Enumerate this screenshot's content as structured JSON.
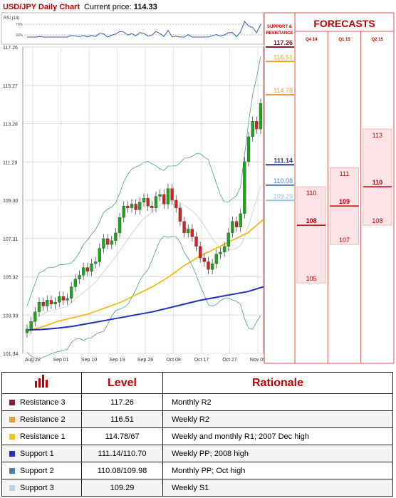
{
  "header": {
    "title": "USD/JPY Daily Chart",
    "price_label": "Current price:",
    "price_value": "114.33"
  },
  "rsi": {
    "label": "RSI (14)",
    "ticks": [
      "70%",
      "30%"
    ]
  },
  "chart_data": {
    "type": "candlestick",
    "y_ticks": [
      "117.26",
      "115.27",
      "113.28",
      "111.29",
      "109.30",
      "107.31",
      "105.32",
      "103.33",
      "101.34"
    ],
    "ylim": [
      101.34,
      117.26
    ],
    "x_ticks": [
      "Aug 22",
      "Sep 01",
      "Sep 10",
      "Sep 19",
      "Sep 29",
      "Oct 08",
      "Oct 17",
      "Oct 27",
      "Nov 05"
    ],
    "close": [
      102.6,
      103.0,
      103.5,
      104.0,
      103.8,
      104.1,
      103.9,
      104.0,
      104.3,
      104.1,
      104.2,
      104.8,
      105.2,
      105.4,
      105.8,
      105.6,
      106.0,
      106.1,
      106.8,
      107.3,
      107.0,
      107.2,
      107.6,
      108.4,
      109.0,
      108.9,
      109.1,
      108.8,
      109.2,
      109.4,
      109.0,
      108.9,
      109.5,
      109.6,
      109.1,
      109.9,
      109.3,
      108.9,
      108.2,
      107.6,
      107.8,
      107.4,
      106.9,
      106.3,
      106.1,
      105.7,
      106.0,
      106.5,
      106.6,
      106.9,
      107.6,
      108.2,
      107.9,
      108.6,
      111.3,
      112.6,
      113.4,
      113.0,
      114.33
    ],
    "sma_yellow": [
      102.5,
      102.7,
      103.0,
      103.2,
      103.4,
      103.7,
      104.0,
      104.4,
      104.8,
      105.3,
      105.9,
      106.4,
      106.8,
      107.2,
      107.6,
      108.3
    ],
    "sma_blue": [
      102.55,
      102.58,
      102.65,
      102.75,
      102.9,
      103.05,
      103.2,
      103.35,
      103.5,
      103.7,
      103.9,
      104.1,
      104.25,
      104.4,
      104.55,
      104.8
    ]
  },
  "levels_panel": {
    "title": "SUPPORT & RESISTANCE",
    "levels": [
      {
        "value": "117.26",
        "color": "#8b1a2b",
        "price": 117.26
      },
      {
        "value": "116.51",
        "color": "#e7a13c",
        "price": 116.51
      },
      {
        "value": "114.78",
        "color": "#e7a13c",
        "price": 114.78
      },
      {
        "value": "111.14",
        "color": "#1f3c9a",
        "price": 111.14
      },
      {
        "value": "110.08",
        "color": "#4a7fb5",
        "price": 110.08
      },
      {
        "value": "109.29",
        "color": "#9bc4d6",
        "price": 109.29
      }
    ]
  },
  "forecasts": {
    "title": "FORECASTS",
    "columns": [
      {
        "label": "Q4 14",
        "high": "110",
        "mid": "108",
        "low": "105"
      },
      {
        "label": "Q1 15",
        "high": "111",
        "mid": "109",
        "low": "107"
      },
      {
        "label": "Q2 15",
        "high": "113",
        "mid": "110",
        "low": "108"
      }
    ]
  },
  "table": {
    "col_level": "Level",
    "col_rationale": "Rationale",
    "rows": [
      {
        "name": "Resistance 3",
        "color": "#8b1a2b",
        "level": "117.26",
        "rationale": "Monthly R2"
      },
      {
        "name": "Resistance 2",
        "color": "#e7a13c",
        "level": "116.51",
        "rationale": "Weekly R2"
      },
      {
        "name": "Resistance 1",
        "color": "#f3c21b",
        "level": "114.78/67",
        "rationale": "Weekly and monthly R1; 2007 Dec high"
      },
      {
        "name": "Support 1",
        "color": "#1f2fbf",
        "level": "111.14/110.70",
        "rationale": "Weekly PP; 2008 high"
      },
      {
        "name": "Support 2",
        "color": "#4a7fb5",
        "level": "110.08/109.98",
        "rationale": "Monthly PP; Oct high"
      },
      {
        "name": "Support 3",
        "color": "#b3d3e6",
        "level": "109.29",
        "rationale": "Weekly S1"
      }
    ]
  }
}
